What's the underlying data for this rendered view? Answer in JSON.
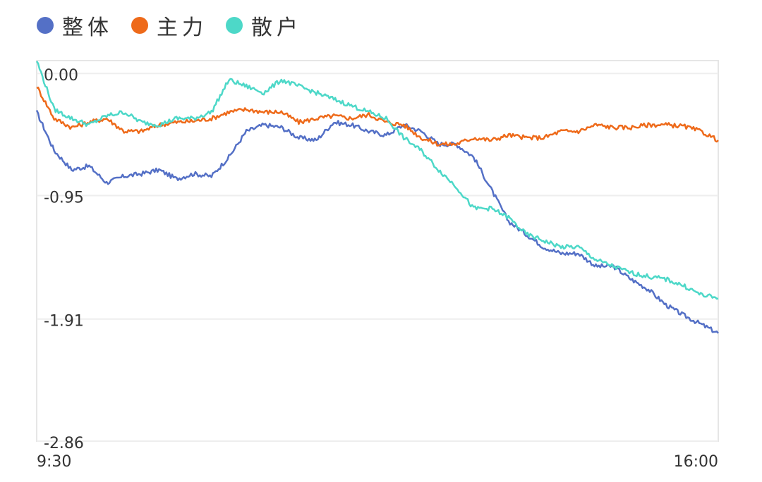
{
  "chart_data": {
    "type": "line",
    "title": "",
    "xlabel": "",
    "ylabel": "",
    "x_ticks": [
      "9:30",
      "16:00"
    ],
    "y_ticks": [
      "0.00",
      "-0.95",
      "-1.91",
      "-2.86"
    ],
    "ylim": [
      -2.86,
      0.1
    ],
    "grid": true,
    "legend_position": "top-left",
    "series": [
      {
        "name": "整体",
        "color": "#5470c6",
        "values": [
          -0.3,
          -0.6,
          -0.75,
          -0.72,
          -0.85,
          -0.8,
          -0.78,
          -0.75,
          -0.82,
          -0.78,
          -0.8,
          -0.65,
          -0.45,
          -0.4,
          -0.42,
          -0.5,
          -0.52,
          -0.38,
          -0.4,
          -0.45,
          -0.48,
          -0.4,
          -0.45,
          -0.55,
          -0.55,
          -0.65,
          -0.9,
          -1.15,
          -1.25,
          -1.35,
          -1.4,
          -1.4,
          -1.5,
          -1.5,
          -1.6,
          -1.68,
          -1.8,
          -1.88,
          -1.95,
          -2.02
        ]
      },
      {
        "name": "主力",
        "color": "#ee6a1a",
        "values": [
          -0.1,
          -0.35,
          -0.42,
          -0.38,
          -0.35,
          -0.45,
          -0.45,
          -0.4,
          -0.38,
          -0.37,
          -0.35,
          -0.3,
          -0.28,
          -0.3,
          -0.3,
          -0.38,
          -0.35,
          -0.33,
          -0.35,
          -0.32,
          -0.38,
          -0.4,
          -0.5,
          -0.55,
          -0.55,
          -0.5,
          -0.52,
          -0.48,
          -0.5,
          -0.5,
          -0.45,
          -0.45,
          -0.4,
          -0.42,
          -0.42,
          -0.4,
          -0.4,
          -0.41,
          -0.45,
          -0.52
        ]
      },
      {
        "name": "散户",
        "color": "#4dd8c8",
        "values": [
          0.1,
          -0.28,
          -0.35,
          -0.4,
          -0.33,
          -0.3,
          -0.38,
          -0.4,
          -0.35,
          -0.35,
          -0.3,
          -0.05,
          -0.1,
          -0.15,
          -0.05,
          -0.1,
          -0.15,
          -0.2,
          -0.25,
          -0.3,
          -0.35,
          -0.5,
          -0.6,
          -0.75,
          -0.88,
          -1.05,
          -1.05,
          -1.12,
          -1.25,
          -1.3,
          -1.35,
          -1.35,
          -1.45,
          -1.5,
          -1.55,
          -1.58,
          -1.6,
          -1.65,
          -1.72,
          -1.75
        ]
      }
    ]
  }
}
